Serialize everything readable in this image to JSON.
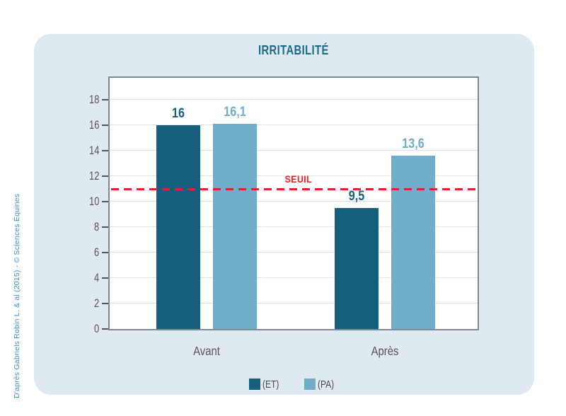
{
  "source_credit": "D'après Gabriels Robin L. & al (2015) - © Sciences Équines",
  "title": "IRRITABILITÉ",
  "chart_data": {
    "type": "bar",
    "title": "IRRITABILITÉ",
    "categories": [
      "Avant",
      "Après"
    ],
    "series": [
      {
        "name": "(ET)",
        "color": "#14607e",
        "values": [
          16,
          9.5
        ],
        "labels": [
          "16",
          "9,5"
        ]
      },
      {
        "name": "(PA)",
        "color": "#6fadc8",
        "values": [
          16.1,
          13.6
        ],
        "labels": [
          "16,1",
          "13,6"
        ]
      }
    ],
    "threshold": {
      "label": "SEUIL",
      "value": 11,
      "color": "#e62028"
    },
    "y_ticks": [
      0,
      2,
      4,
      6,
      8,
      10,
      12,
      14,
      16,
      18
    ],
    "ylim": [
      0,
      19.7
    ],
    "grid": true,
    "legend_position": "bottom",
    "xlabel": "",
    "ylabel": ""
  },
  "colors": {
    "card_background": "#dfe9f0",
    "title": "#1a6a8c",
    "axis_border": "#7d8993",
    "gridline": "#e3e3e3",
    "tick_text": "#55565b",
    "threshold_red": "#e62028",
    "series_dark": "#14607e",
    "series_light": "#6fadc8",
    "source_text": "#4090b3"
  }
}
